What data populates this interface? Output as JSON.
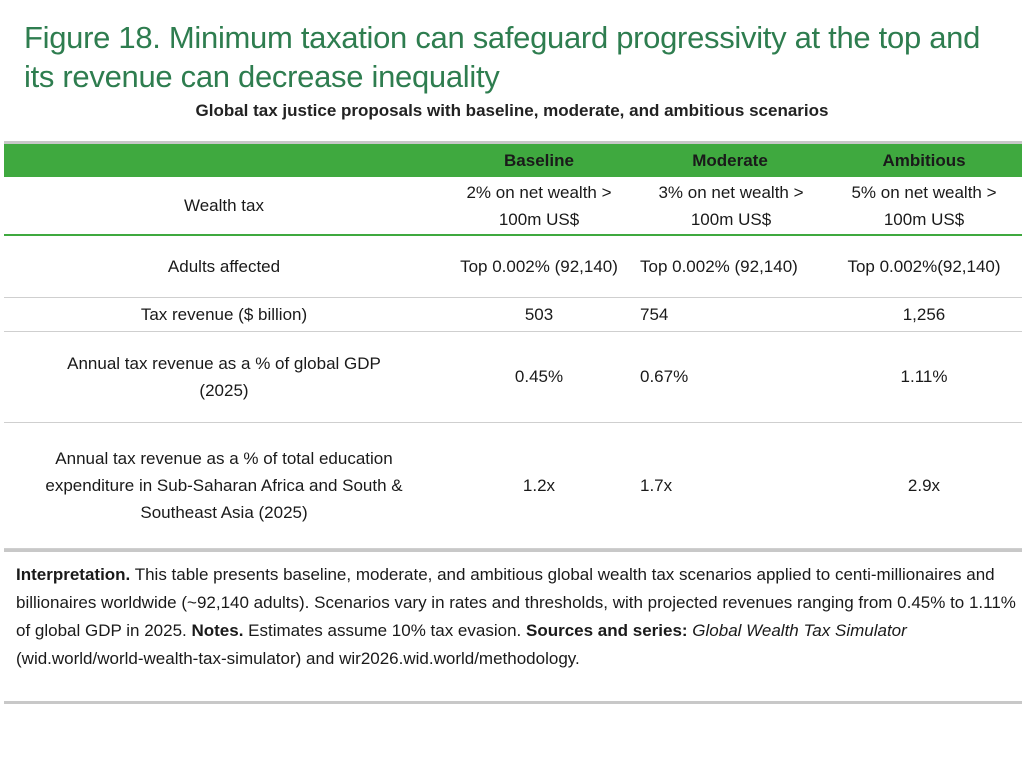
{
  "figure": {
    "title": "Figure 18. Minimum taxation can safeguard progressivity at the top and its revenue can decrease inequality",
    "subtitle": "Global tax justice proposals with baseline, moderate, and ambitious scenarios"
  },
  "table": {
    "headers": [
      "",
      "Baseline",
      "Moderate",
      "Ambitious"
    ],
    "rows": [
      {
        "label": "Wealth tax",
        "baseline": "2% on net wealth > 100m US$",
        "moderate": "3% on net wealth > 100m US$",
        "ambitious": "5% on net wealth > 100m US$"
      },
      {
        "label": "Adults affected",
        "baseline": "Top 0.002% (92,140)",
        "moderate": "Top 0.002% (92,140)",
        "ambitious": "Top 0.002%(92,140)"
      },
      {
        "label": "Tax revenue ($ billion)",
        "baseline": "503",
        "moderate": "754",
        "ambitious": "1,256"
      },
      {
        "label": "Annual tax revenue as a % of global GDP (2025)",
        "baseline": "0.45%",
        "moderate": "0.67%",
        "ambitious": "1.11%"
      },
      {
        "label": "Annual tax revenue as a % of total education expenditure in Sub-Saharan Africa and South & Southeast Asia (2025)",
        "baseline": "1.2x",
        "moderate": "1.7x",
        "ambitious": "2.9x"
      }
    ]
  },
  "notes": {
    "interpretation_label": "Interpretation.",
    "interpretation_text": " This table presents baseline, moderate, and ambitious global wealth tax scenarios applied to centi-millionaires and billionaires worldwide (~92,140 adults). Scenarios vary in rates and thresholds, with projected revenues ranging from  0.45% to 1.11% of global GDP in 2025. ",
    "notes_label": "Notes.",
    "notes_text": " Estimates assume 10% tax evasion. ",
    "sources_label": "Sources and series:",
    "sources_italic": "Global Wealth Tax Simulator",
    "sources_text": " (wid.world/world-wealth-tax-simulator) and wir2026.wid.world/methodology."
  }
}
